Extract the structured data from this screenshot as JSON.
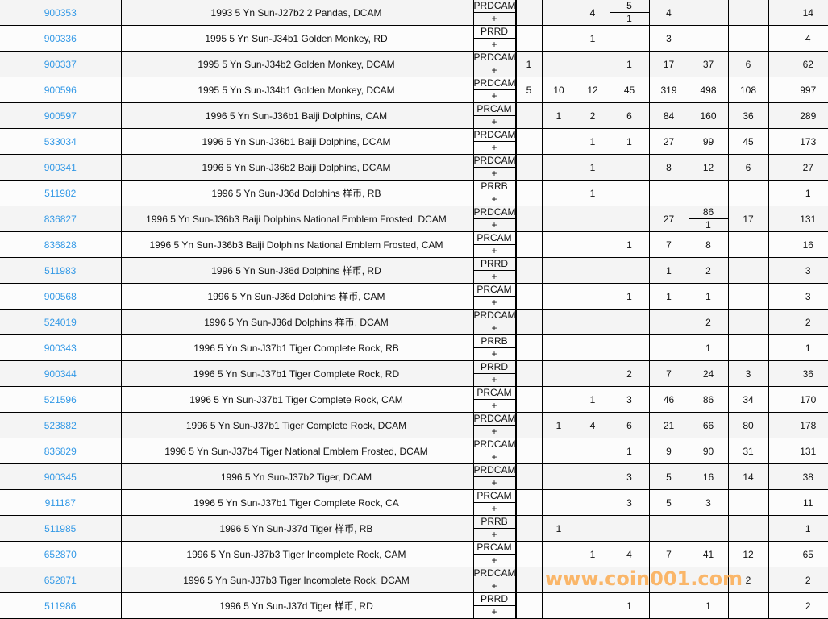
{
  "watermark": "www.coin001.com",
  "colors": {
    "link": "#3399e6",
    "watermark": "#faaa50"
  },
  "rows": [
    {
      "id": "900353",
      "desc": "1993 5 Yn Sun-J27b2 2 Pandas, DCAM",
      "grade": "PRDCAM",
      "plus": "+",
      "cells": [
        "",
        "",
        "4",
        [
          "5",
          "1"
        ],
        "4",
        "",
        "",
        "",
        "14"
      ]
    },
    {
      "id": "900336",
      "desc": "1995 5 Yn Sun-J34b1 Golden Monkey, RD",
      "grade": "PRRD",
      "plus": "+",
      "cells": [
        "",
        "",
        "1",
        "",
        "3",
        "",
        "",
        "",
        "4"
      ]
    },
    {
      "id": "900337",
      "desc": "1995 5 Yn Sun-J34b2 Golden Monkey, DCAM",
      "grade": "PRDCAM",
      "plus": "+",
      "cells": [
        "1",
        "",
        "",
        "1",
        "17",
        "37",
        "6",
        "",
        "62"
      ]
    },
    {
      "id": "900596",
      "desc": "1995 5 Yn Sun-J34b1 Golden Monkey, DCAM",
      "grade": "PRDCAM",
      "plus": "+",
      "cells": [
        "5",
        "10",
        "12",
        "45",
        "319",
        "498",
        "108",
        "",
        "997"
      ]
    },
    {
      "id": "900597",
      "desc": "1996 5 Yn Sun-J36b1 Baiji Dolphins, CAM",
      "grade": "PRCAM",
      "plus": "+",
      "cells": [
        "",
        "1",
        "2",
        "6",
        "84",
        "160",
        "36",
        "",
        "289"
      ]
    },
    {
      "id": "533034",
      "desc": "1996 5 Yn Sun-J36b1 Baiji Dolphins, DCAM",
      "grade": "PRDCAM",
      "plus": "+",
      "cells": [
        "",
        "",
        "1",
        "1",
        "27",
        "99",
        "45",
        "",
        "173"
      ]
    },
    {
      "id": "900341",
      "desc": "1996 5 Yn Sun-J36b2 Baiji Dolphins, DCAM",
      "grade": "PRDCAM",
      "plus": "+",
      "cells": [
        "",
        "",
        "1",
        "",
        "8",
        "12",
        "6",
        "",
        "27"
      ]
    },
    {
      "id": "511982",
      "desc": "1996 5 Yn Sun-J36d Dolphins 样币, RB",
      "grade": "PRRB",
      "plus": "+",
      "cells": [
        "",
        "",
        "1",
        "",
        "",
        "",
        "",
        "",
        "1"
      ]
    },
    {
      "id": "836827",
      "desc": "1996 5 Yn Sun-J36b3 Baiji Dolphins National Emblem Frosted, DCAM",
      "grade": "PRDCAM",
      "plus": "+",
      "cells": [
        "",
        "",
        "",
        "",
        "27",
        [
          "86",
          "1"
        ],
        "17",
        "",
        "131"
      ]
    },
    {
      "id": "836828",
      "desc": "1996 5 Yn Sun-J36b3 Baiji Dolphins National Emblem Frosted, CAM",
      "grade": "PRCAM",
      "plus": "+",
      "cells": [
        "",
        "",
        "",
        "1",
        "7",
        "8",
        "",
        "",
        "16"
      ]
    },
    {
      "id": "511983",
      "desc": "1996 5 Yn Sun-J36d Dolphins 样币, RD",
      "grade": "PRRD",
      "plus": "+",
      "cells": [
        "",
        "",
        "",
        "",
        "1",
        "2",
        "",
        "",
        "3"
      ]
    },
    {
      "id": "900568",
      "desc": "1996 5 Yn Sun-J36d Dolphins 样币, CAM",
      "grade": "PRCAM",
      "plus": "+",
      "cells": [
        "",
        "",
        "",
        "1",
        "1",
        "1",
        "",
        "",
        "3"
      ]
    },
    {
      "id": "524019",
      "desc": "1996 5 Yn Sun-J36d Dolphins 样币, DCAM",
      "grade": "PRDCAM",
      "plus": "+",
      "cells": [
        "",
        "",
        "",
        "",
        "",
        "2",
        "",
        "",
        "2"
      ]
    },
    {
      "id": "900343",
      "desc": "1996 5 Yn Sun-J37b1 Tiger Complete Rock, RB",
      "grade": "PRRB",
      "plus": "+",
      "cells": [
        "",
        "",
        "",
        "",
        "",
        "1",
        "",
        "",
        "1"
      ]
    },
    {
      "id": "900344",
      "desc": "1996 5 Yn Sun-J37b1 Tiger Complete Rock, RD",
      "grade": "PRRD",
      "plus": "+",
      "cells": [
        "",
        "",
        "",
        "2",
        "7",
        "24",
        "3",
        "",
        "36"
      ]
    },
    {
      "id": "521596",
      "desc": "1996 5 Yn Sun-J37b1 Tiger Complete Rock, CAM",
      "grade": "PRCAM",
      "plus": "+",
      "cells": [
        "",
        "",
        "1",
        "3",
        "46",
        "86",
        "34",
        "",
        "170"
      ]
    },
    {
      "id": "523882",
      "desc": "1996 5 Yn Sun-J37b1 Tiger Complete Rock, DCAM",
      "grade": "PRDCAM",
      "plus": "+",
      "cells": [
        "",
        "1",
        "4",
        "6",
        "21",
        "66",
        "80",
        "",
        "178"
      ]
    },
    {
      "id": "836829",
      "desc": "1996 5 Yn Sun-J37b4 Tiger National Emblem Frosted, DCAM",
      "grade": "PRDCAM",
      "plus": "+",
      "cells": [
        "",
        "",
        "",
        "1",
        "9",
        "90",
        "31",
        "",
        "131"
      ]
    },
    {
      "id": "900345",
      "desc": "1996 5 Yn Sun-J37b2 Tiger, DCAM",
      "grade": "PRDCAM",
      "plus": "+",
      "cells": [
        "",
        "",
        "",
        "3",
        "5",
        "16",
        "14",
        "",
        "38"
      ]
    },
    {
      "id": "911187",
      "desc": "1996 5 Yn Sun-J37b1 Tiger Complete Rock, CA",
      "grade": "PRCAM",
      "plus": "+",
      "cells": [
        "",
        "",
        "",
        "3",
        "5",
        "3",
        "",
        "",
        "11"
      ]
    },
    {
      "id": "511985",
      "desc": "1996 5 Yn Sun-J37d Tiger 样币, RB",
      "grade": "PRRB",
      "plus": "+",
      "cells": [
        "",
        "1",
        "",
        "",
        "",
        "",
        "",
        "",
        "1"
      ]
    },
    {
      "id": "652870",
      "desc": "1996 5 Yn Sun-J37b3 Tiger Incomplete Rock, CAM",
      "grade": "PRCAM",
      "plus": "+",
      "cells": [
        "",
        "",
        "1",
        "4",
        "7",
        "41",
        "12",
        "",
        "65"
      ]
    },
    {
      "id": "652871",
      "desc": "1996 5 Yn Sun-J37b3 Tiger Incomplete Rock, DCAM",
      "grade": "PRDCAM",
      "plus": "+",
      "cells": [
        "",
        "",
        "",
        "",
        "",
        "",
        "2",
        "",
        "2"
      ]
    },
    {
      "id": "511986",
      "desc": "1996 5 Yn Sun-J37d Tiger 样币, RD",
      "grade": "PRRD",
      "plus": "+",
      "cells": [
        "",
        "",
        "",
        "1",
        "",
        "1",
        "",
        "",
        "2"
      ]
    }
  ]
}
